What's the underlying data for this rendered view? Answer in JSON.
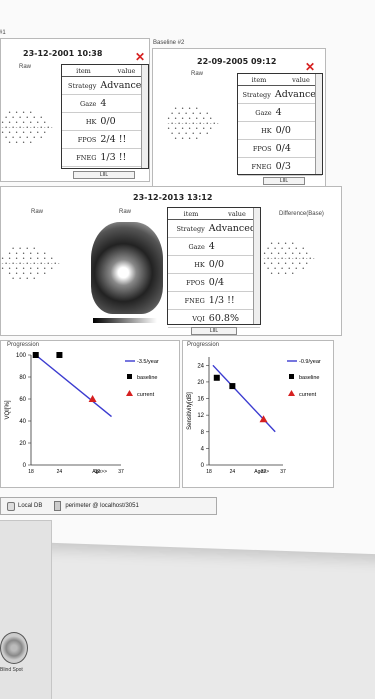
{
  "panels": {
    "top_left": {
      "title": "#1",
      "date": "23-12-2001 10:38",
      "plot_label": "Raw",
      "table": {
        "head": [
          "item",
          "value"
        ],
        "rows": [
          [
            "Strategy",
            "Advanced"
          ],
          [
            "Gaze",
            "4"
          ],
          [
            "HK",
            "0/0"
          ],
          [
            "FPOS",
            "2/4 !!"
          ],
          [
            "FNEG",
            "1/3 !!"
          ]
        ]
      },
      "scroll_text": "LIIL"
    },
    "top_right": {
      "title": "Baseline #2",
      "date": "22-09-2005 09:12",
      "plot_label": "Raw",
      "table": {
        "head": [
          "item",
          "value"
        ],
        "rows": [
          [
            "Strategy",
            "Advanced"
          ],
          [
            "Gaze",
            "4"
          ],
          [
            "HK",
            "0/0"
          ],
          [
            "FPOS",
            "0/4"
          ],
          [
            "FNEG",
            "0/3"
          ]
        ]
      },
      "scroll_text": "LIIL"
    },
    "middle": {
      "date": "23-12-2013 13:12",
      "plot_label_1": "Raw",
      "plot_label_2": "Raw",
      "plot_label_3": "Difference(Base)",
      "table": {
        "head": [
          "item",
          "value"
        ],
        "rows": [
          [
            "Strategy",
            "Advanced"
          ],
          [
            "Gaze",
            "4"
          ],
          [
            "HK",
            "0/0"
          ],
          [
            "FPOS",
            "0/4"
          ],
          [
            "FNEG",
            "1/3 !!"
          ],
          [
            "VQI",
            "60.8%"
          ]
        ]
      },
      "scroll_text": "LIIL"
    }
  },
  "progression_left": {
    "title": "Progression",
    "legend": {
      "slope": "-3.5/year",
      "baseline": "baseline",
      "current": "current"
    },
    "colors": {
      "line": "#3b3bd0",
      "baseline": "#000000",
      "current": "#d62020"
    }
  },
  "progression_right": {
    "title": "Progression",
    "legend": {
      "slope": "-0.9/year",
      "baseline": "baseline",
      "current": "current"
    },
    "colors": {
      "line": "#3b3bd0",
      "baseline": "#000000",
      "current": "#d62020"
    }
  },
  "chart_data": [
    {
      "type": "line",
      "ylabel": "VQI[%]",
      "xlabel": "Age>>",
      "ylim": [
        0,
        100
      ],
      "xlim": [
        18,
        37
      ],
      "xticks": [
        "18",
        "24",
        "32",
        "37"
      ],
      "yticks": [
        0,
        20,
        40,
        60,
        80,
        100
      ],
      "series": [
        {
          "name": "-3.5/year",
          "x": [
            19,
            35
          ],
          "y": [
            100,
            44
          ]
        },
        {
          "name": "baseline",
          "x": [
            19,
            24
          ],
          "y": [
            100,
            100
          ]
        },
        {
          "name": "current",
          "x": [
            31
          ],
          "y": [
            60
          ]
        }
      ]
    },
    {
      "type": "line",
      "ylabel": "Sensitivity[dB]",
      "xlabel": "Age>>",
      "ylim": [
        0,
        26
      ],
      "xlim": [
        18,
        37
      ],
      "xticks": [
        "18",
        "24",
        "32",
        "37"
      ],
      "yticks": [
        0,
        4,
        8,
        12,
        16,
        20,
        24
      ],
      "series": [
        {
          "name": "-0.9/year",
          "x": [
            19,
            35
          ],
          "y": [
            24,
            8
          ]
        },
        {
          "name": "baseline",
          "x": [
            20,
            24
          ],
          "y": [
            21,
            19
          ]
        },
        {
          "name": "current",
          "x": [
            32
          ],
          "y": [
            11
          ]
        }
      ]
    }
  ],
  "status_bar": {
    "db": "Local DB",
    "conn": "perimeter @ localhost/3051"
  },
  "side_panel": {
    "label": "Blind Spot"
  }
}
